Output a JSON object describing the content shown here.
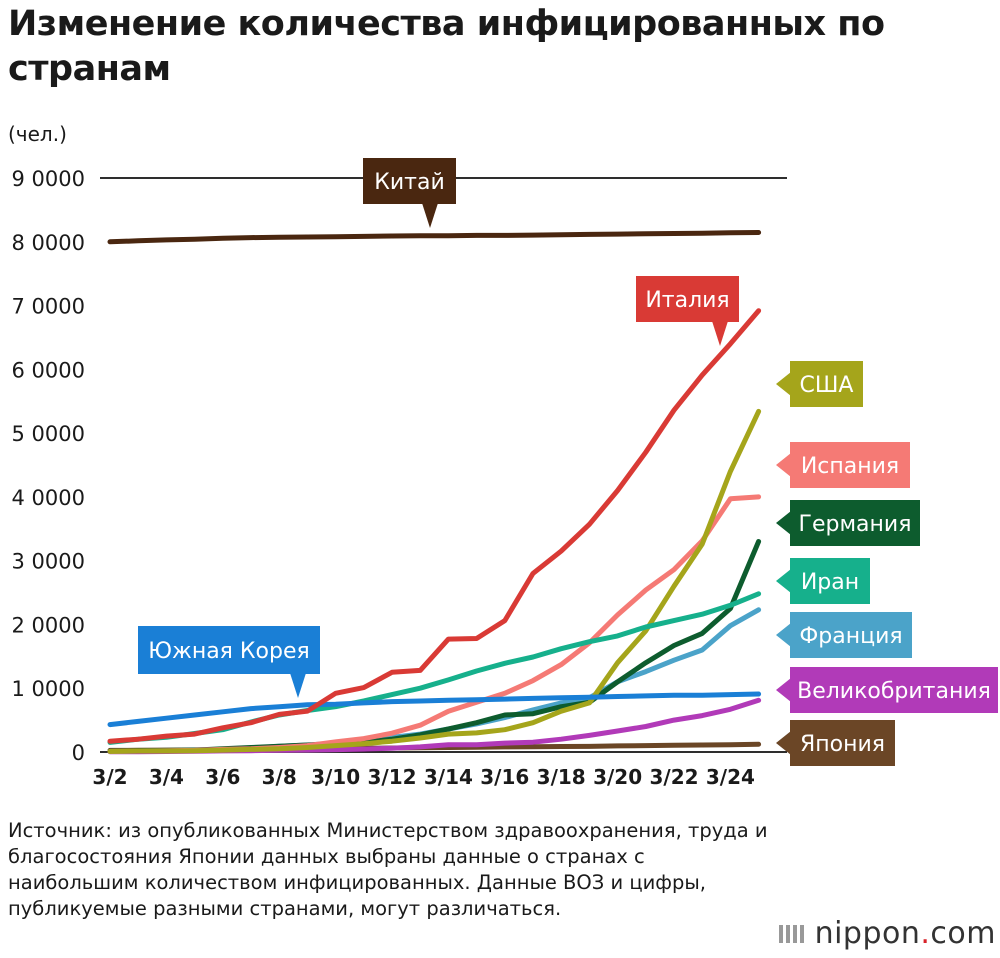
{
  "title": "Изменение количества инфицированных по странам",
  "y_unit": "(чел.)",
  "source_text": "Источник: из опубликованных Министерством здравоохранения, труда и благосостояния Японии данных выбраны данные о странах с наибольшим количеством инфицированных. Данные ВОЗ и цифры, публикуемые разными странами, могут различаться.",
  "brand": {
    "name": "nippon",
    "dot": ".",
    "tld": "com",
    "icon": "nippon-logo-icon"
  },
  "chart_data": {
    "type": "line",
    "xlabel": "",
    "ylabel": "(чел.)",
    "ylim": [
      0,
      90000
    ],
    "yticks": [
      0,
      10000,
      20000,
      30000,
      40000,
      50000,
      60000,
      70000,
      80000,
      90000
    ],
    "ytick_labels": [
      "0",
      "1 0000",
      "2 0000",
      "3 0000",
      "4 0000",
      "5 0000",
      "6 0000",
      "7 0000",
      "8 0000",
      "9 0000"
    ],
    "grid": "horizontal lines at 0 and 90000",
    "x": [
      "3/2",
      "3/3",
      "3/4",
      "3/5",
      "3/6",
      "3/7",
      "3/8",
      "3/9",
      "3/10",
      "3/11",
      "3/12",
      "3/13",
      "3/14",
      "3/15",
      "3/16",
      "3/17",
      "3/18",
      "3/19",
      "3/20",
      "3/21",
      "3/22",
      "3/23",
      "3/24",
      "3/25"
    ],
    "xtick_labels": [
      "3/2",
      "3/4",
      "3/6",
      "3/8",
      "3/10",
      "3/12",
      "3/14",
      "3/16",
      "3/18",
      "3/20",
      "3/22",
      "3/24"
    ],
    "series": [
      {
        "name": "Китай",
        "color": "#4a2710",
        "values": [
          80000,
          80150,
          80300,
          80400,
          80550,
          80650,
          80700,
          80750,
          80800,
          80850,
          80900,
          80950,
          80950,
          81000,
          81000,
          81050,
          81100,
          81150,
          81200,
          81250,
          81300,
          81350,
          81400,
          81450
        ]
      },
      {
        "name": "Италия",
        "color": "#d93a35",
        "values": [
          1700,
          2000,
          2500,
          2800,
          3800,
          4600,
          5900,
          6400,
          9200,
          10100,
          12500,
          12800,
          17700,
          17800,
          20600,
          28000,
          31500,
          35700,
          41000,
          47000,
          53600,
          59100,
          64000,
          69200
        ]
      },
      {
        "name": "США",
        "color": "#a5a51b",
        "values": [
          100,
          150,
          150,
          200,
          300,
          400,
          500,
          700,
          1000,
          1300,
          1700,
          2200,
          2800,
          3000,
          3500,
          4600,
          6400,
          7700,
          14000,
          19000,
          26000,
          32600,
          44000,
          53400
        ]
      },
      {
        "name": "Испания",
        "color": "#f57a75",
        "values": [
          100,
          150,
          200,
          250,
          400,
          500,
          700,
          1000,
          1600,
          2100,
          2950,
          4200,
          6400,
          7800,
          9200,
          11200,
          13700,
          17100,
          21500,
          25400,
          28600,
          33100,
          39700,
          40000
        ]
      },
      {
        "name": "Германия",
        "color": "#0d5c2e",
        "values": [
          150,
          200,
          250,
          300,
          500,
          700,
          900,
          1100,
          1300,
          1500,
          2000,
          2700,
          3600,
          4600,
          5800,
          6000,
          7100,
          7800,
          11000,
          14000,
          16700,
          18600,
          22500,
          33000
        ]
      },
      {
        "name": "Иран",
        "color": "#16b08c",
        "values": [
          1500,
          2000,
          2300,
          2900,
          3500,
          4700,
          5800,
          6500,
          7100,
          8000,
          9000,
          10000,
          11300,
          12700,
          13900,
          14900,
          16200,
          17300,
          18200,
          19600,
          20600,
          21600,
          23000,
          24800
        ]
      },
      {
        "name": "Франция",
        "color": "#4ba3c9",
        "values": [
          100,
          150,
          200,
          300,
          400,
          600,
          900,
          1100,
          1400,
          1800,
          2300,
          2800,
          3600,
          4400,
          5400,
          6600,
          7700,
          8500,
          11000,
          12600,
          14400,
          16000,
          19800,
          22300
        ]
      },
      {
        "name": "Южная Корея",
        "color": "#1a7fd6",
        "values": [
          4300,
          4800,
          5300,
          5800,
          6300,
          6800,
          7100,
          7400,
          7500,
          7700,
          7900,
          8000,
          8100,
          8200,
          8300,
          8400,
          8500,
          8600,
          8700,
          8800,
          8900,
          8900,
          9000,
          9100
        ]
      },
      {
        "name": "Великобритания",
        "color": "#b13ab8",
        "values": [
          40,
          50,
          85,
          115,
          165,
          210,
          270,
          320,
          380,
          460,
          590,
          800,
          1140,
          1140,
          1400,
          1540,
          2000,
          2600,
          3300,
          4000,
          5000,
          5700,
          6700,
          8100
        ]
      },
      {
        "name": "Япония",
        "color": "#6b4626",
        "values": [
          250,
          270,
          300,
          330,
          360,
          420,
          460,
          500,
          560,
          600,
          620,
          670,
          710,
          750,
          800,
          820,
          860,
          880,
          950,
          1000,
          1050,
          1100,
          1150,
          1200
        ]
      }
    ]
  }
}
